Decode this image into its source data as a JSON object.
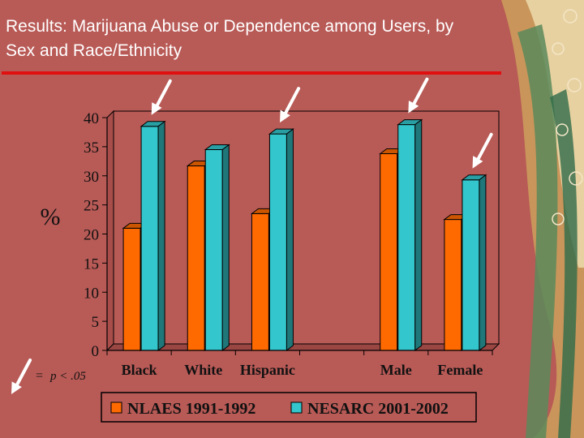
{
  "slide": {
    "title_line1": "Results:  Marijuana Abuse or Dependence among Users, by",
    "title_line2": "Sex and Race/Ethnicity"
  },
  "significance_note": {
    "equals": "=",
    "text": "p < .05"
  },
  "colors": {
    "background": "#b85a56",
    "title_rule": "#e01010",
    "nlaes": "#ff6a00",
    "nesarc": "#33c6cc",
    "plot_area": "#b85a56"
  },
  "chart_data": {
    "type": "bar",
    "categories": [
      "Black",
      "White",
      "Hispanic",
      "",
      "Male",
      "Female"
    ],
    "series": [
      {
        "name": "NLAES 1991-1992",
        "values": [
          21,
          31.7,
          23.5,
          null,
          33.8,
          22.5
        ]
      },
      {
        "name": "NESARC 2001-2002",
        "values": [
          38.5,
          34.5,
          37.2,
          null,
          38.8,
          29.3
        ]
      }
    ],
    "ylabel": "%",
    "ylim": [
      0,
      40
    ],
    "yticks": [
      0,
      5,
      10,
      15,
      20,
      25,
      30,
      35,
      40
    ],
    "legend": "bottom",
    "significant_categories": [
      "Black",
      "Hispanic",
      "Male",
      "Female"
    ]
  }
}
